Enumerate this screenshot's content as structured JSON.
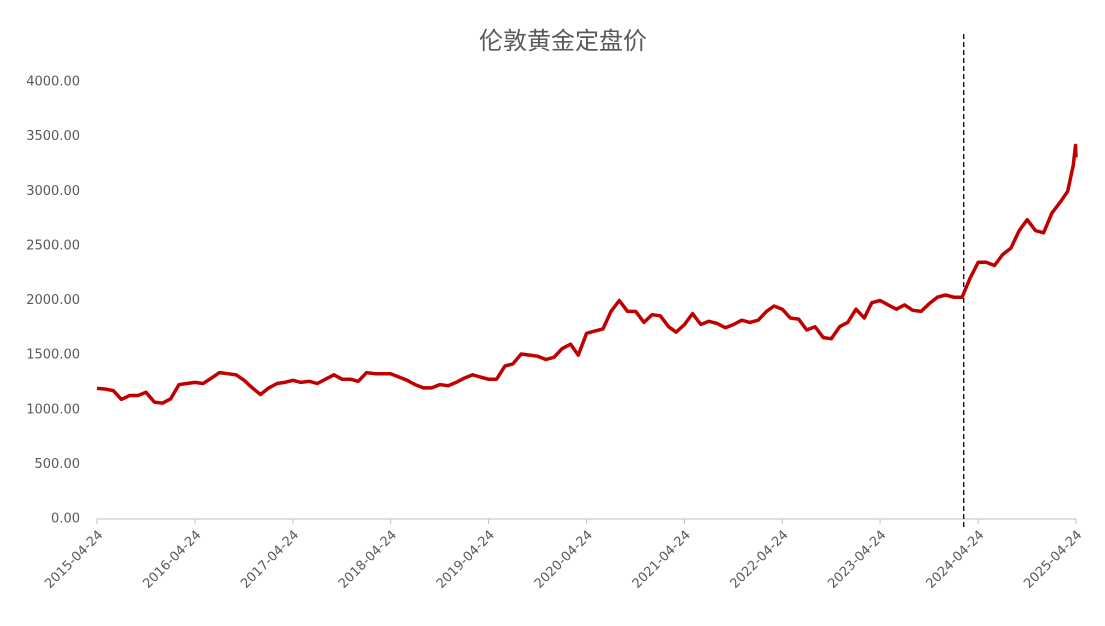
{
  "chart_data": {
    "type": "line",
    "title": "伦敦黄金定盘价",
    "x": [
      "2015-04-24",
      "2015-05-24",
      "2015-06-24",
      "2015-07-24",
      "2015-08-24",
      "2015-09-24",
      "2015-10-24",
      "2015-11-24",
      "2015-12-24",
      "2016-01-24",
      "2016-02-24",
      "2016-03-24",
      "2016-04-24",
      "2016-05-24",
      "2016-06-24",
      "2016-07-24",
      "2016-08-24",
      "2016-09-24",
      "2016-10-24",
      "2016-11-24",
      "2016-12-24",
      "2017-01-24",
      "2017-02-24",
      "2017-03-24",
      "2017-04-24",
      "2017-05-24",
      "2017-06-24",
      "2017-07-24",
      "2017-08-24",
      "2017-09-24",
      "2017-10-24",
      "2017-11-24",
      "2017-12-24",
      "2018-01-24",
      "2018-02-24",
      "2018-03-24",
      "2018-04-24",
      "2018-05-24",
      "2018-06-24",
      "2018-07-24",
      "2018-08-24",
      "2018-09-24",
      "2018-10-24",
      "2018-11-24",
      "2018-12-24",
      "2019-01-24",
      "2019-02-24",
      "2019-03-24",
      "2019-04-24",
      "2019-05-24",
      "2019-06-24",
      "2019-07-24",
      "2019-08-24",
      "2019-09-24",
      "2019-10-24",
      "2019-11-24",
      "2019-12-24",
      "2020-01-24",
      "2020-02-24",
      "2020-03-24",
      "2020-04-24",
      "2020-05-24",
      "2020-06-24",
      "2020-07-24",
      "2020-08-24",
      "2020-09-24",
      "2020-10-24",
      "2020-11-24",
      "2020-12-24",
      "2021-01-24",
      "2021-02-24",
      "2021-03-24",
      "2021-04-24",
      "2021-05-24",
      "2021-06-24",
      "2021-07-24",
      "2021-08-24",
      "2021-09-24",
      "2021-10-24",
      "2021-11-24",
      "2021-12-24",
      "2022-01-24",
      "2022-02-24",
      "2022-03-24",
      "2022-04-24",
      "2022-05-24",
      "2022-06-24",
      "2022-07-24",
      "2022-08-24",
      "2022-09-24",
      "2022-10-24",
      "2022-11-24",
      "2022-12-24",
      "2023-01-24",
      "2023-02-24",
      "2023-03-24",
      "2023-04-24",
      "2023-05-24",
      "2023-06-24",
      "2023-07-24",
      "2023-08-24",
      "2023-09-24",
      "2023-10-24",
      "2023-11-24",
      "2023-12-24",
      "2024-01-24",
      "2024-02-24",
      "2024-03-24",
      "2024-04-24",
      "2024-05-24",
      "2024-06-24",
      "2024-07-24",
      "2024-08-24",
      "2024-09-24",
      "2024-10-24",
      "2024-11-24",
      "2024-12-24",
      "2025-01-24",
      "2025-02-24",
      "2025-03-24",
      "2025-04-14",
      "2025-04-22",
      "2025-04-24"
    ],
    "series": [
      {
        "name": "伦敦黄金定盘价",
        "color": "#c00000",
        "values": [
          1195,
          1190,
          1175,
          1095,
          1130,
          1130,
          1160,
          1070,
          1060,
          1100,
          1230,
          1240,
          1250,
          1240,
          1290,
          1340,
          1330,
          1320,
          1270,
          1200,
          1140,
          1200,
          1240,
          1250,
          1270,
          1250,
          1260,
          1240,
          1280,
          1320,
          1280,
          1280,
          1260,
          1340,
          1330,
          1330,
          1330,
          1300,
          1270,
          1230,
          1200,
          1200,
          1230,
          1220,
          1250,
          1290,
          1320,
          1300,
          1280,
          1280,
          1400,
          1420,
          1510,
          1500,
          1490,
          1460,
          1480,
          1560,
          1600,
          1500,
          1700,
          1720,
          1740,
          1900,
          2000,
          1900,
          1900,
          1800,
          1870,
          1860,
          1760,
          1710,
          1780,
          1880,
          1780,
          1810,
          1790,
          1750,
          1780,
          1820,
          1800,
          1820,
          1900,
          1950,
          1920,
          1840,
          1830,
          1730,
          1760,
          1660,
          1650,
          1760,
          1800,
          1920,
          1840,
          1980,
          2000,
          1960,
          1920,
          1960,
          1910,
          1900,
          1970,
          2030,
          2050,
          2030,
          2030,
          2200,
          2350,
          2350,
          2320,
          2420,
          2480,
          2640,
          2740,
          2640,
          2620,
          2800,
          2900,
          3000,
          3240,
          3420,
          3310
        ]
      }
    ],
    "xlim": [
      "2015-04-24",
      "2025-04-24"
    ],
    "xticks": [
      "2015-04-24",
      "2016-04-24",
      "2017-04-24",
      "2018-04-24",
      "2019-04-24",
      "2020-04-24",
      "2021-04-24",
      "2022-04-24",
      "2023-04-24",
      "2024-04-24",
      "2025-04-24"
    ],
    "ylim": [
      0,
      4000
    ],
    "yticks": [
      {
        "value": 0,
        "label": "0.00"
      },
      {
        "value": 500,
        "label": "500.00"
      },
      {
        "value": 1000,
        "label": "1000.00"
      },
      {
        "value": 1500,
        "label": "1500.00"
      },
      {
        "value": 2000,
        "label": "2000.00"
      },
      {
        "value": 2500,
        "label": "2500.00"
      },
      {
        "value": 3000,
        "label": "3000.00"
      },
      {
        "value": 3500,
        "label": "3500.00"
      },
      {
        "value": 4000,
        "label": "4000.00"
      }
    ],
    "vline_x": "2024-03-01",
    "grid": false
  }
}
